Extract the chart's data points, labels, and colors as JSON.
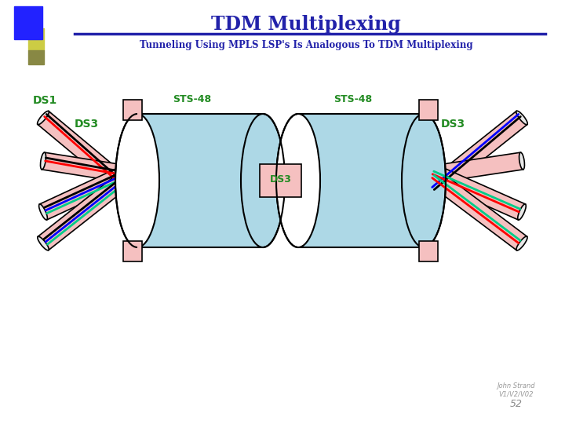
{
  "title": "TDM Multiplexing",
  "subtitle": "Tunneling Using MPLS LSP's Is Analogous To TDM Multiplexing",
  "title_color": "#2222AA",
  "subtitle_color": "#2222AA",
  "label_ds1": "DS1",
  "label_ds3_left": "DS3",
  "label_ds3_mid": "DS3",
  "label_ds3_right": "DS3",
  "label_sts48_left": "STS-48",
  "label_sts48_right": "STS-48",
  "label_color": "#228B22",
  "footer_line1": "John Strand",
  "footer_line2": "V1/V2/V02",
  "footer_line3": "52",
  "bg_color": "#ffffff",
  "title_underline_color": "#2222AA",
  "pipe_color_light": "#F5C0C0",
  "pipe_color_dark": "#E09090",
  "box_color_light": "#ADD8E6",
  "box_color_mid": "#90C4DC",
  "connector_color": "#F5C0C0",
  "line_colors_upper": [
    "#000000",
    "#FF0000"
  ],
  "line_colors_lower": [
    "#000000",
    "#0000FF",
    "#00CC88"
  ],
  "accent_blue": "#2222FF",
  "accent_yellow": "#CCCC44",
  "accent_olive": "#888844"
}
